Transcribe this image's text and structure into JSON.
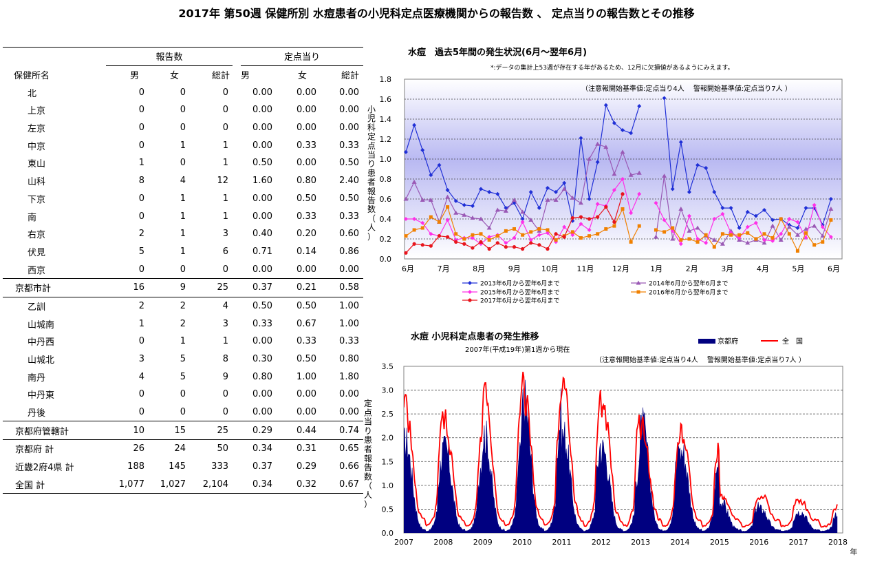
{
  "title": "2017年 第50週 保健所別 水痘患者の小児科定点医療機関からの報告数 、 定点当りの報告数とその推移",
  "table": {
    "group_headers": [
      "報告数",
      "定点当り"
    ],
    "col_headers": [
      "保健所名",
      "男",
      "女",
      "総計",
      "男",
      "女",
      "総計"
    ],
    "rows": [
      {
        "name": "北",
        "m": "0",
        "f": "0",
        "t": "0",
        "pm": "0.00",
        "pf": "0.00",
        "pt": "0.00",
        "indent": true,
        "sep": false
      },
      {
        "name": "上京",
        "m": "0",
        "f": "0",
        "t": "0",
        "pm": "0.00",
        "pf": "0.00",
        "pt": "0.00",
        "indent": true,
        "sep": false
      },
      {
        "name": "左京",
        "m": "0",
        "f": "0",
        "t": "0",
        "pm": "0.00",
        "pf": "0.00",
        "pt": "0.00",
        "indent": true,
        "sep": false
      },
      {
        "name": "中京",
        "m": "0",
        "f": "1",
        "t": "1",
        "pm": "0.00",
        "pf": "0.33",
        "pt": "0.33",
        "indent": true,
        "sep": false
      },
      {
        "name": "東山",
        "m": "1",
        "f": "0",
        "t": "1",
        "pm": "0.50",
        "pf": "0.00",
        "pt": "0.50",
        "indent": true,
        "sep": false
      },
      {
        "name": "山科",
        "m": "8",
        "f": "4",
        "t": "12",
        "pm": "1.60",
        "pf": "0.80",
        "pt": "2.40",
        "indent": true,
        "sep": false
      },
      {
        "name": "下京",
        "m": "0",
        "f": "1",
        "t": "1",
        "pm": "0.00",
        "pf": "0.50",
        "pt": "0.50",
        "indent": true,
        "sep": false
      },
      {
        "name": "南",
        "m": "0",
        "f": "1",
        "t": "1",
        "pm": "0.00",
        "pf": "0.33",
        "pt": "0.33",
        "indent": true,
        "sep": false
      },
      {
        "name": "右京",
        "m": "2",
        "f": "1",
        "t": "3",
        "pm": "0.40",
        "pf": "0.20",
        "pt": "0.60",
        "indent": true,
        "sep": false
      },
      {
        "name": "伏見",
        "m": "5",
        "f": "1",
        "t": "6",
        "pm": "0.71",
        "pf": "0.14",
        "pt": "0.86",
        "indent": true,
        "sep": false
      },
      {
        "name": "西京",
        "m": "0",
        "f": "0",
        "t": "0",
        "pm": "0.00",
        "pf": "0.00",
        "pt": "0.00",
        "indent": true,
        "sep": false
      },
      {
        "name": "京都市計",
        "m": "16",
        "f": "9",
        "t": "25",
        "pm": "0.37",
        "pf": "0.21",
        "pt": "0.58",
        "indent": false,
        "sep": true
      },
      {
        "name": "乙訓",
        "m": "2",
        "f": "2",
        "t": "4",
        "pm": "0.50",
        "pf": "0.50",
        "pt": "1.00",
        "indent": true,
        "sep": true
      },
      {
        "name": "山城南",
        "m": "1",
        "f": "2",
        "t": "3",
        "pm": "0.33",
        "pf": "0.67",
        "pt": "1.00",
        "indent": true,
        "sep": false
      },
      {
        "name": "中丹西",
        "m": "0",
        "f": "1",
        "t": "1",
        "pm": "0.00",
        "pf": "0.33",
        "pt": "0.33",
        "indent": true,
        "sep": false
      },
      {
        "name": "山城北",
        "m": "3",
        "f": "5",
        "t": "8",
        "pm": "0.30",
        "pf": "0.50",
        "pt": "0.80",
        "indent": true,
        "sep": false
      },
      {
        "name": "南丹",
        "m": "4",
        "f": "5",
        "t": "9",
        "pm": "0.80",
        "pf": "1.00",
        "pt": "1.80",
        "indent": true,
        "sep": false
      },
      {
        "name": "中丹東",
        "m": "0",
        "f": "0",
        "t": "0",
        "pm": "0.00",
        "pf": "0.00",
        "pt": "0.00",
        "indent": true,
        "sep": false
      },
      {
        "name": "丹後",
        "m": "0",
        "f": "0",
        "t": "0",
        "pm": "0.00",
        "pf": "0.00",
        "pt": "0.00",
        "indent": true,
        "sep": false
      },
      {
        "name": "京都府管轄計",
        "m": "10",
        "f": "15",
        "t": "25",
        "pm": "0.29",
        "pf": "0.44",
        "pt": "0.74",
        "indent": false,
        "sep": true
      },
      {
        "name": "京都府 計",
        "m": "26",
        "f": "24",
        "t": "50",
        "pm": "0.34",
        "pf": "0.31",
        "pt": "0.65",
        "indent": false,
        "sep": true
      },
      {
        "name": "近畿2府4県 計",
        "m": "188",
        "f": "145",
        "t": "333",
        "pm": "0.37",
        "pf": "0.29",
        "pt": "0.66",
        "indent": false,
        "sep": false
      },
      {
        "name": "全国 計",
        "m": "1,077",
        "f": "1,027",
        "t": "2,104",
        "pm": "0.34",
        "pf": "0.32",
        "pt": "0.67",
        "indent": false,
        "sep": false
      }
    ]
  },
  "chart_data": [
    {
      "type": "line",
      "title": "水痘　過去5年間の発生状況(6月～翌年6月)",
      "subtitle": "*:データの集計上53週が存在する年があるため、12月に欠損値があるようにみえます。",
      "annotation": "（注意報開始基準値:定点当り4人　 警報開始基準値:定点当り7人 ）",
      "ylabel": "小児科定点当り患者報告数（人）",
      "ylim": [
        0,
        1.8
      ],
      "yticks": [
        "0.0",
        "0.2",
        "0.4",
        "0.6",
        "0.8",
        "1.0",
        "1.2",
        "1.4",
        "1.6",
        "1.8"
      ],
      "xticks": [
        "6月",
        "7月",
        "8月",
        "9月",
        "10月",
        "11月",
        "12月",
        "1月",
        "2月",
        "3月",
        "4月",
        "5月",
        "6月"
      ],
      "weeks": 53,
      "series": [
        {
          "name": "2013年6月から翌年6月まで",
          "color": "#1f2fd6",
          "marker": "diamond",
          "values": [
            1.07,
            1.34,
            1.09,
            0.84,
            0.94,
            0.69,
            0.58,
            0.54,
            0.53,
            0.7,
            0.67,
            0.65,
            0.51,
            0.56,
            0.4,
            0.67,
            0.51,
            0.71,
            0.67,
            0.76,
            0.38,
            1.21,
            0.6,
            0.97,
            1.54,
            1.36,
            1.29,
            1.26,
            1.53,
            null,
            null,
            1.61,
            0.7,
            1.17,
            0.67,
            0.94,
            0.91,
            0.67,
            0.51,
            0.51,
            0.31,
            0.47,
            0.43,
            0.49,
            0.39,
            0.4,
            0.34,
            0.31,
            0.51,
            0.51,
            0.34,
            0.6,
            null
          ]
        },
        {
          "name": "2014年6月から翌年6月まで",
          "color": "#9a59b5",
          "marker": "triangle",
          "values": [
            0.6,
            0.77,
            0.59,
            0.59,
            0.37,
            0.62,
            0.46,
            0.44,
            0.41,
            0.4,
            0.31,
            0.49,
            0.48,
            0.59,
            0.47,
            0.39,
            0.28,
            0.59,
            0.59,
            0.7,
            0.61,
            0.56,
            1.0,
            1.15,
            1.12,
            0.85,
            1.07,
            0.84,
            0.86,
            null,
            0.22,
            0.83,
            0.2,
            0.5,
            0.28,
            0.31,
            0.23,
            0.19,
            0.15,
            0.28,
            0.19,
            0.16,
            0.19,
            0.16,
            0.33,
            0.19,
            0.32,
            0.24,
            0.3,
            0.33,
            0.23,
            0.5,
            null
          ]
        },
        {
          "name": "2015年6月から翌年6月まで",
          "color": "#ff2fe8",
          "marker": "diamond",
          "values": [
            0.4,
            0.4,
            0.36,
            0.25,
            0.23,
            0.39,
            0.19,
            0.21,
            0.21,
            0.15,
            0.22,
            0.24,
            0.16,
            0.21,
            0.37,
            0.19,
            0.24,
            0.26,
            0.17,
            0.32,
            0.24,
            0.35,
            0.29,
            0.55,
            0.53,
            0.69,
            0.8,
            0.46,
            0.65,
            null,
            0.56,
            0.39,
            0.28,
            0.15,
            0.43,
            0.2,
            0.16,
            0.4,
            0.45,
            0.26,
            0.21,
            0.32,
            0.36,
            0.19,
            0.18,
            0.25,
            0.4,
            0.37,
            0.21,
            0.54,
            0.32,
            0.22,
            null
          ]
        },
        {
          "name": "2016年6月から翌年6月まで",
          "color": "#f08000",
          "marker": "square",
          "values": [
            0.23,
            0.29,
            0.31,
            0.42,
            0.37,
            0.52,
            0.25,
            0.2,
            0.24,
            0.25,
            0.19,
            0.23,
            0.28,
            0.3,
            0.24,
            0.27,
            0.3,
            0.29,
            0.19,
            0.23,
            0.27,
            0.21,
            0.23,
            0.25,
            0.3,
            0.33,
            0.5,
            0.17,
            0.33,
            null,
            0.29,
            0.27,
            0.31,
            0.19,
            0.2,
            0.17,
            0.24,
            0.12,
            0.25,
            0.24,
            0.24,
            0.26,
            0.2,
            0.25,
            0.21,
            0.4,
            0.25,
            0.08,
            0.26,
            0.14,
            0.17,
            0.39,
            null
          ]
        },
        {
          "name": "2017年6月から翌年6月まで",
          "color": "#e8141c",
          "marker": "circle",
          "values": [
            0.06,
            0.15,
            0.14,
            0.13,
            0.23,
            0.22,
            0.17,
            0.15,
            0.11,
            0.17,
            0.1,
            0.16,
            0.12,
            0.12,
            0.1,
            0.16,
            0.14,
            0.1,
            0.25,
            0.22,
            0.41,
            0.42,
            0.4,
            0.42,
            0.52,
            0.37,
            0.65,
            null,
            null,
            null,
            null,
            null,
            null,
            null,
            null,
            null,
            null,
            null,
            null,
            null,
            null,
            null,
            null,
            null,
            null,
            null,
            null,
            null,
            null,
            null,
            null,
            null,
            null
          ]
        }
      ]
    },
    {
      "type": "area",
      "title": "水痘 小児科定点患者の発生推移",
      "subtitle": "2007年(平成19年)第1週から現在",
      "annotation": "（注意報開始基準値:定点当り4人　 警報開始基準値:定点当り7人 ）",
      "ylabel": "定点当り患者報告数（人）",
      "ylim": [
        0,
        3.5
      ],
      "yticks": [
        "0.0",
        "0.5",
        "1.0",
        "1.5",
        "2.0",
        "2.5",
        "3.0",
        "3.5"
      ],
      "xticks": [
        "2007",
        "2008",
        "2009",
        "2010",
        "2011",
        "2012",
        "2013",
        "2014",
        "2015",
        "2016",
        "2017",
        "2018"
      ],
      "xunit": "年",
      "series": [
        {
          "name": "京都府",
          "color": "#000080"
        },
        {
          "name": "全　国",
          "color": "#ff0000"
        }
      ],
      "yearly_profile_kyoto": [
        [
          2007,
          1.9
        ],
        [
          2008,
          1.75
        ],
        [
          2009,
          2.05
        ],
        [
          2010,
          2.75
        ],
        [
          2011,
          2.05
        ],
        [
          2012,
          1.75
        ],
        [
          2013,
          2.2
        ],
        [
          2014,
          1.7
        ],
        [
          2015,
          0.65
        ],
        [
          2016,
          0.5
        ],
        [
          2017,
          0.45
        ]
      ],
      "yearly_profile_national": [
        [
          2007,
          2.7
        ],
        [
          2008,
          2.4
        ],
        [
          2009,
          3.0
        ],
        [
          2010,
          3.0
        ],
        [
          2011,
          3.0
        ],
        [
          2012,
          2.75
        ],
        [
          2013,
          2.2
        ],
        [
          2014,
          2.05
        ],
        [
          2015,
          0.8
        ],
        [
          2016,
          0.85
        ],
        [
          2017,
          0.65
        ]
      ]
    }
  ]
}
